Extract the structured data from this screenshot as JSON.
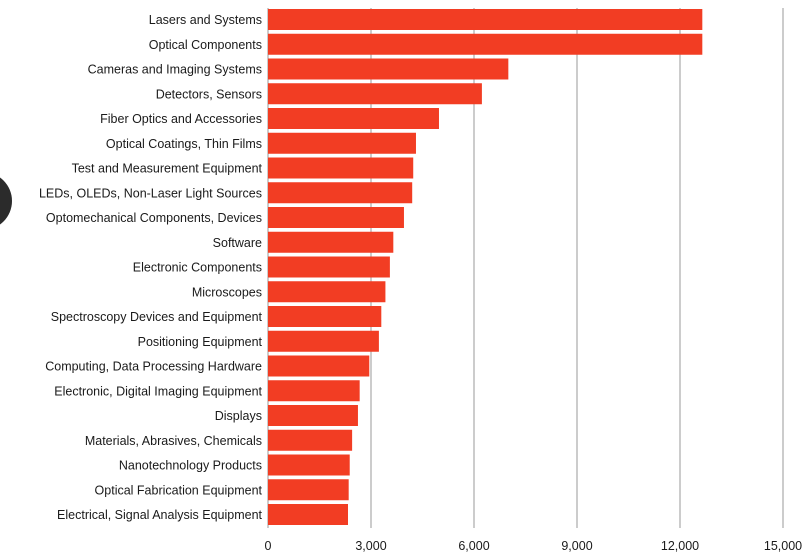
{
  "colors": {
    "bar": "#f23d23",
    "grid": "#9a9a9a",
    "text": "#1a1a1a"
  },
  "chart_data": {
    "type": "bar",
    "orientation": "horizontal",
    "title": "",
    "xlabel": "",
    "ylabel": "",
    "xlim": [
      0,
      15000
    ],
    "x_ticks": [
      0,
      3000,
      6000,
      9000,
      12000,
      15000
    ],
    "x_tick_labels": [
      "0",
      "3,000",
      "6,000",
      "9,000",
      "12,000",
      "15,000"
    ],
    "grid": true,
    "categories": [
      "Lasers and Systems",
      "Optical Components",
      "Cameras and Imaging Systems",
      "Detectors, Sensors",
      "Fiber Optics and Accessories",
      "Optical Coatings, Thin Films",
      "Test and Measurement Equipment",
      "LEDs, OLEDs, Non-Laser Light Sources",
      "Optomechanical Components, Devices",
      "Software",
      "Electronic Components",
      "Microscopes",
      "Spectroscopy Devices and Equipment",
      "Positioning Equipment",
      "Computing, Data Processing Hardware",
      "Electronic, Digital Imaging Equipment",
      "Displays",
      "Materials, Abrasives, Chemicals",
      "Nanotechnology Products",
      "Optical Fabrication Equipment",
      "Electrical, Signal Analysis Equipment"
    ],
    "values": [
      12650,
      12650,
      7000,
      6230,
      4980,
      4310,
      4230,
      4200,
      3960,
      3650,
      3550,
      3420,
      3300,
      3230,
      2950,
      2670,
      2620,
      2450,
      2380,
      2350,
      2330
    ]
  }
}
